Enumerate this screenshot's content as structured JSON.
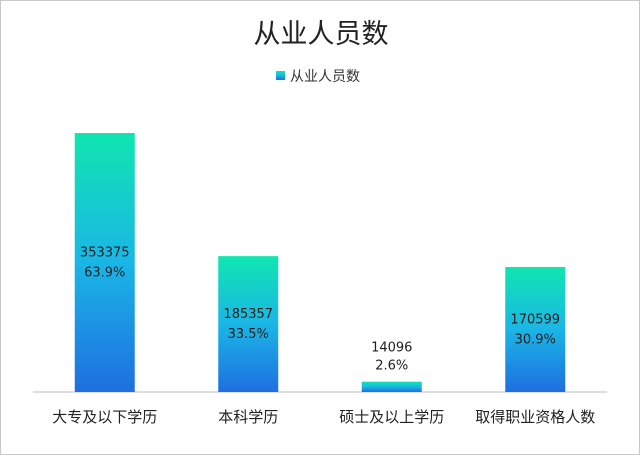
{
  "chart_data": {
    "type": "bar",
    "title": "从业人员数",
    "legend": {
      "position": "top",
      "entries": [
        "从业人员数"
      ]
    },
    "categories": [
      "大专及以下学历",
      "本科学历",
      "硕士及以上学历",
      "取得职业资格人数"
    ],
    "series": [
      {
        "name": "从业人员数",
        "values": [
          353375,
          185357,
          14096,
          170599
        ]
      }
    ],
    "percent_labels": [
      "63.9%",
      "33.5%",
      "2.6%",
      "30.9%"
    ],
    "ylim": [
      0,
      353375
    ],
    "grid": false,
    "colors": {
      "bar_top": "#10e6b0",
      "bar_mid": "#1ab6e6",
      "bar_bottom": "#1e6fe0"
    }
  }
}
